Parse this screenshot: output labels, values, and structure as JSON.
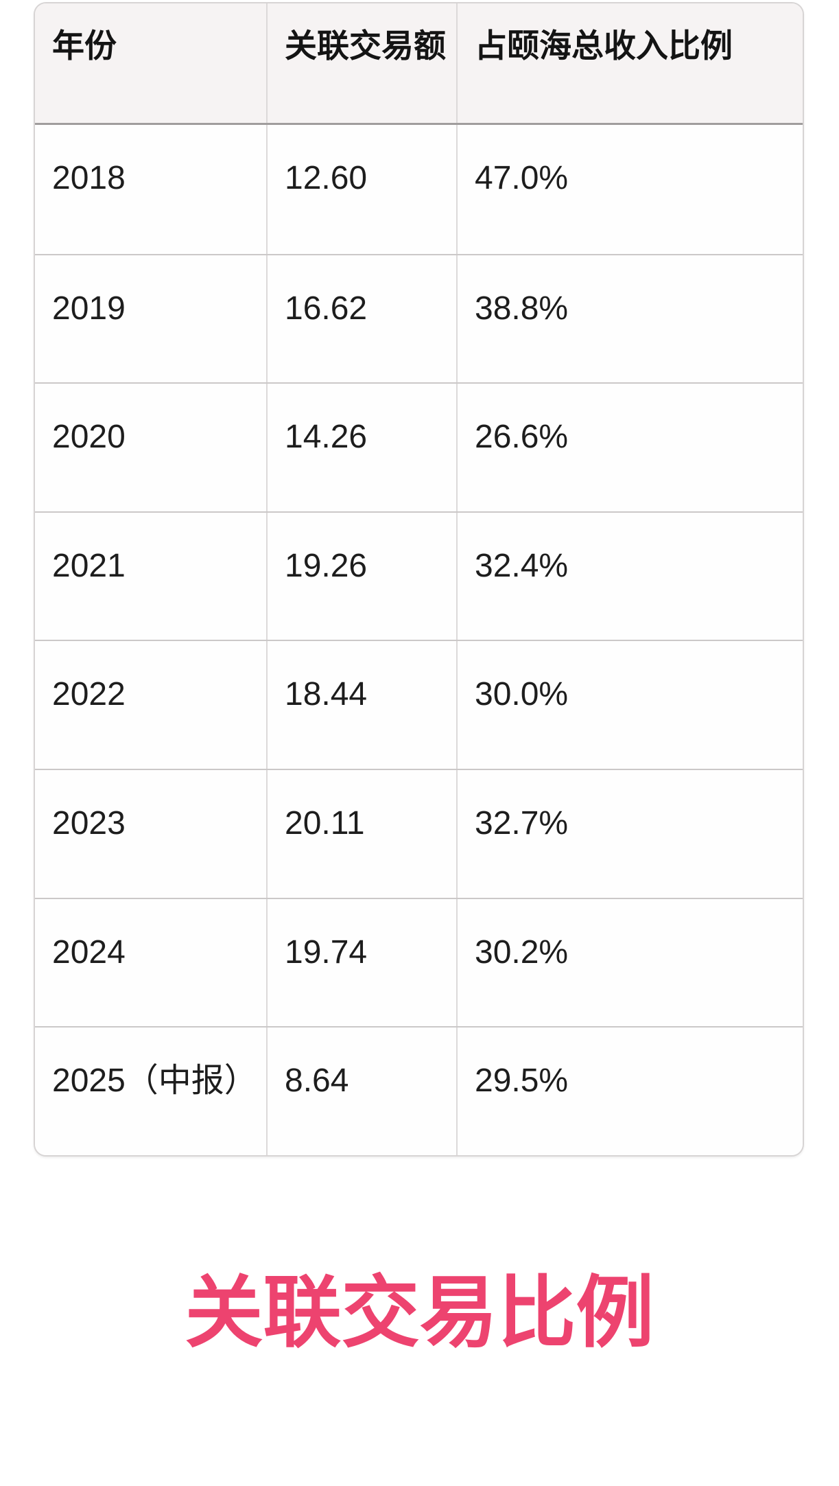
{
  "table": {
    "columns": [
      "年份",
      "关联交易额",
      "占颐海总收入比例"
    ],
    "rows": [
      [
        "2018",
        "12.60",
        "47.0%"
      ],
      [
        "2019",
        "16.62",
        "38.8%"
      ],
      [
        "2020",
        "14.26",
        "26.6%"
      ],
      [
        "2021",
        "19.26",
        "32.4%"
      ],
      [
        "2022",
        "18.44",
        "30.0%"
      ],
      [
        "2023",
        "20.11",
        "32.7%"
      ],
      [
        "2024",
        "19.74",
        "30.2%"
      ],
      [
        "2025（中报）",
        "8.64",
        "29.5%"
      ]
    ],
    "header_bg": "#f6f3f3",
    "header_divider_color": "#a09d9d",
    "row_divider_color": "#cbc8c8",
    "text_color": "#1d1d1d"
  },
  "title": {
    "text": "关联交易比例",
    "color": "#ed436f"
  }
}
